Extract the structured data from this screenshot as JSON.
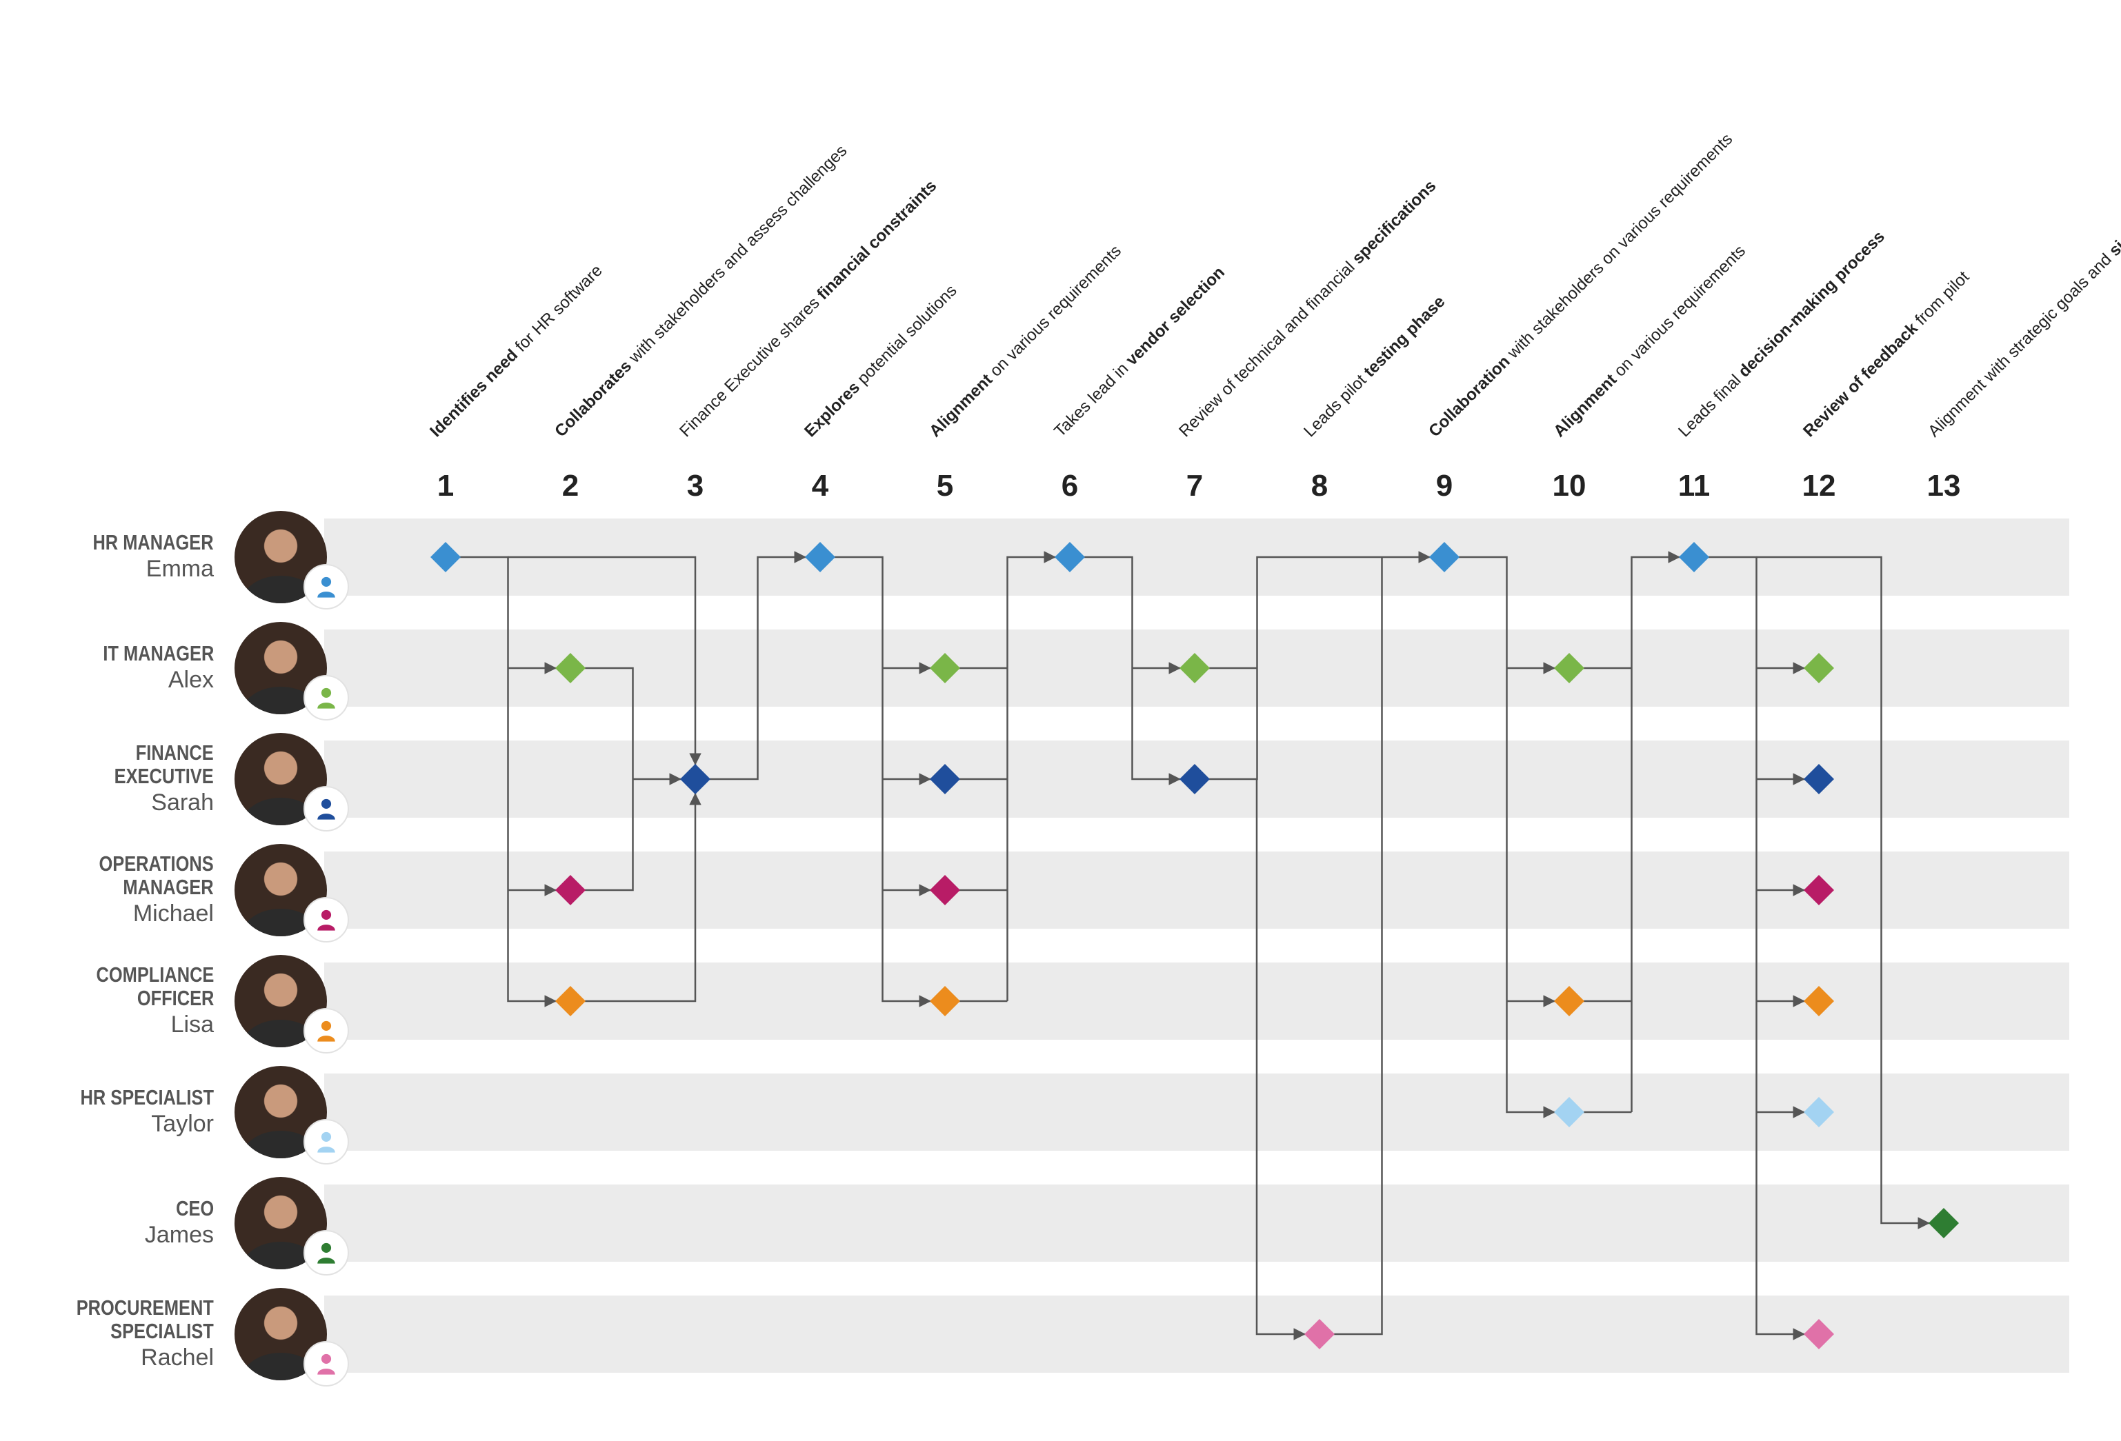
{
  "colors": {
    "band": "#ebebeb",
    "line": "#555555",
    "hr_manager": "#3a8fd1",
    "it_manager": "#7ab648",
    "finance_executive": "#1f4e9c",
    "operations_manager": "#b81c66",
    "compliance_officer": "#ec8c1d",
    "hr_specialist": "#a3d3f2",
    "ceo": "#2e7d32",
    "procurement_specialist": "#e071a8"
  },
  "roles": [
    {
      "title": "HR MANAGER",
      "name": "Emma",
      "color_key": "hr_manager"
    },
    {
      "title": "IT MANAGER",
      "name": "Alex",
      "color_key": "it_manager"
    },
    {
      "title": "FINANCE\nEXECUTIVE",
      "name": "Sarah",
      "color_key": "finance_executive"
    },
    {
      "title": "OPERATIONS\nMANAGER",
      "name": "Michael",
      "color_key": "operations_manager"
    },
    {
      "title": "COMPLIANCE\nOFFICER",
      "name": "Lisa",
      "color_key": "compliance_officer"
    },
    {
      "title": "HR SPECIALIST",
      "name": "Taylor",
      "color_key": "hr_specialist"
    },
    {
      "title": "CEO",
      "name": "James",
      "color_key": "ceo"
    },
    {
      "title": "PROCUREMENT\nSPECIALIST",
      "name": "Rachel",
      "color_key": "procurement_specialist"
    }
  ],
  "steps": [
    {
      "number": "1",
      "bold": "Identifies need",
      "text": " for HR software"
    },
    {
      "number": "2",
      "bold": "Collaborates",
      "text": " with stakeholders and assess challenges"
    },
    {
      "number": "3",
      "bold": "financial constraints",
      "text": "Finance Executive shares "
    },
    {
      "number": "4",
      "bold": "Explores",
      "text": " potential solutions"
    },
    {
      "number": "5",
      "bold": "Alignment",
      "text": " on various requirements"
    },
    {
      "number": "6",
      "bold": "vendor selection",
      "text": "Takes lead in "
    },
    {
      "number": "7",
      "bold": "specifications",
      "text": "Review of technical and financial "
    },
    {
      "number": "8",
      "bold": "testing phase",
      "text": "Leads pilot "
    },
    {
      "number": "9",
      "bold": "Collaboration",
      "text": " with stakeholders on various requirements"
    },
    {
      "number": "10",
      "bold": "Alignment",
      "text": " on various requirements"
    },
    {
      "number": "11",
      "bold": "decision-making process",
      "text": "Leads final "
    },
    {
      "number": "12",
      "bold": "Review of feedback",
      "text": " from pilot"
    },
    {
      "number": "13",
      "bold": "sign-off",
      "text": "Alignment with strategic goals and "
    }
  ],
  "nodes": [
    {
      "step": 1,
      "role": 0
    },
    {
      "step": 2,
      "role": 1
    },
    {
      "step": 2,
      "role": 3
    },
    {
      "step": 2,
      "role": 4
    },
    {
      "step": 3,
      "role": 2
    },
    {
      "step": 4,
      "role": 0
    },
    {
      "step": 5,
      "role": 1
    },
    {
      "step": 5,
      "role": 2
    },
    {
      "step": 5,
      "role": 3
    },
    {
      "step": 5,
      "role": 4
    },
    {
      "step": 6,
      "role": 0
    },
    {
      "step": 7,
      "role": 1
    },
    {
      "step": 7,
      "role": 2
    },
    {
      "step": 8,
      "role": 7
    },
    {
      "step": 9,
      "role": 0
    },
    {
      "step": 10,
      "role": 1
    },
    {
      "step": 10,
      "role": 4
    },
    {
      "step": 10,
      "role": 5
    },
    {
      "step": 11,
      "role": 0
    },
    {
      "step": 12,
      "role": 1
    },
    {
      "step": 12,
      "role": 2
    },
    {
      "step": 12,
      "role": 3
    },
    {
      "step": 12,
      "role": 4
    },
    {
      "step": 12,
      "role": 5
    },
    {
      "step": 12,
      "role": 7
    },
    {
      "step": 13,
      "role": 6
    }
  ]
}
